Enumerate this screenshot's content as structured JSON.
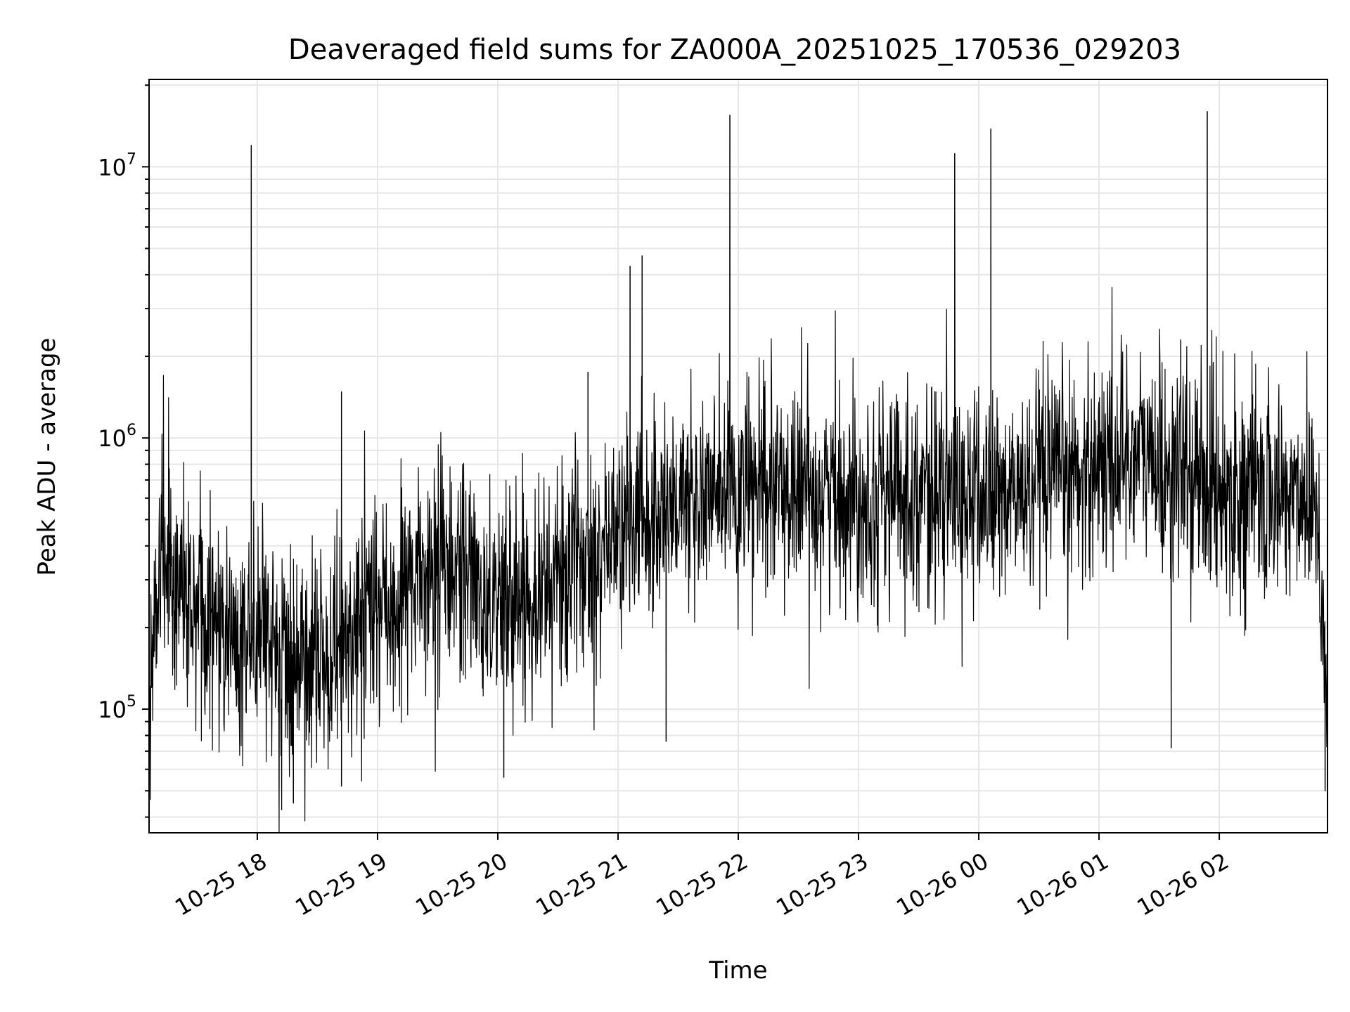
{
  "chart_data": {
    "type": "line",
    "title": "Deaveraged field sums for ZA000A_20251025_170536_029203",
    "xlabel": "Time",
    "ylabel": "Peak ADU - average",
    "yscale": "log",
    "ylim": [
      35000,
      21000000
    ],
    "xlim_hours": [
      17.1,
      26.9
    ],
    "grid": true,
    "line_color": "#000000",
    "grid_color": "#e6e6e6",
    "x_ticks": [
      {
        "label": "10-25 18",
        "hour": 18
      },
      {
        "label": "10-25 19",
        "hour": 19
      },
      {
        "label": "10-25 20",
        "hour": 20
      },
      {
        "label": "10-25 21",
        "hour": 21
      },
      {
        "label": "10-25 22",
        "hour": 22
      },
      {
        "label": "10-25 23",
        "hour": 23
      },
      {
        "label": "10-26 00",
        "hour": 24
      },
      {
        "label": "10-26 01",
        "hour": 25
      },
      {
        "label": "10-26 02",
        "hour": 26
      }
    ],
    "y_ticks": [
      {
        "base": "10",
        "exp": "5",
        "value": 100000
      },
      {
        "base": "10",
        "exp": "6",
        "value": 1000000
      },
      {
        "base": "10",
        "exp": "7",
        "value": 10000000
      }
    ],
    "series": [
      {
        "name": "Peak ADU - average",
        "trend": {
          "hours": [
            17.1,
            17.2,
            17.3,
            17.6,
            18.0,
            18.3,
            18.6,
            19.0,
            19.5,
            20.0,
            20.5,
            21.0,
            21.5,
            22.0,
            22.5,
            23.0,
            23.5,
            24.0,
            24.5,
            25.0,
            25.3,
            25.6,
            26.0,
            26.5,
            26.8,
            26.9
          ],
          "values": [
            100000,
            450000,
            300000,
            200000,
            180000,
            140000,
            160000,
            230000,
            330000,
            250000,
            300000,
            450000,
            580000,
            620000,
            650000,
            620000,
            640000,
            600000,
            640000,
            820000,
            900000,
            750000,
            660000,
            600000,
            650000,
            110000
          ]
        },
        "spikes": [
          {
            "hour": 17.95,
            "value": 12000000
          },
          {
            "hour": 21.1,
            "value": 4300000
          },
          {
            "hour": 21.2,
            "value": 4700000
          },
          {
            "hour": 21.93,
            "value": 15500000
          },
          {
            "hour": 23.8,
            "value": 11200000
          },
          {
            "hour": 24.1,
            "value": 13800000
          },
          {
            "hour": 25.9,
            "value": 16000000
          },
          {
            "hour": 25.68,
            "value": 2300000
          },
          {
            "hour": 25.95,
            "value": 1900000
          },
          {
            "hour": 20.75,
            "value": 1750000
          },
          {
            "hour": 18.7,
            "value": 1480000
          }
        ],
        "dips": [
          {
            "hour": 18.3,
            "value": 45000
          },
          {
            "hour": 18.7,
            "value": 52000
          },
          {
            "hour": 20.05,
            "value": 56000
          },
          {
            "hour": 21.4,
            "value": 76000
          },
          {
            "hour": 25.6,
            "value": 72000
          },
          {
            "hour": 26.88,
            "value": 50000
          }
        ]
      }
    ]
  }
}
